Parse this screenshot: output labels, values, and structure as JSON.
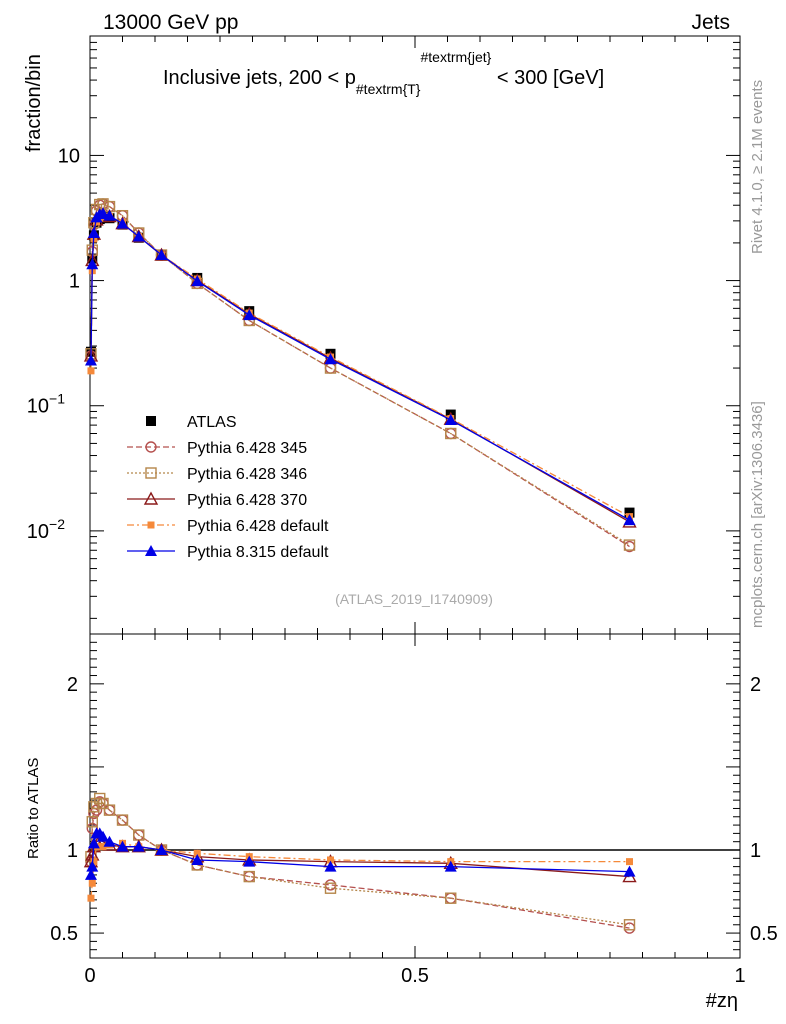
{
  "header": {
    "left": "13000 GeV pp",
    "right": "Jets",
    "side_top": "Rivet 4.1.0, ≥ 2.1M events",
    "side_bottom": "mcplots.cern.ch [arXiv:1306.3436]",
    "analysis_id": "(ATLAS_2019_I1740909)"
  },
  "chart_data": {
    "type": "line",
    "title": {
      "main": "Inclusive jets, 200 < p",
      "sub": "#textrm{T}",
      "sup": "#textrm{jet}",
      "tail": " < 300 [GeV]"
    },
    "xlabel": "#zη",
    "ylabel": "fraction/bin",
    "ratio_ylabel": "Ratio to ATLAS",
    "xlim": [
      0,
      1
    ],
    "ylim": [
      0.0015,
      90
    ],
    "ratio_ylim": [
      0.35,
      2.3
    ],
    "yscale": "log",
    "x_ticks": [
      {
        "v": 0,
        "label": "0"
      },
      {
        "v": 0.5,
        "label": "0.5"
      },
      {
        "v": 1,
        "label": "1"
      }
    ],
    "y_ticks": [
      {
        "v": 10,
        "label": "10",
        "exp": ""
      },
      {
        "v": 1,
        "label": "1",
        "exp": ""
      },
      {
        "v": 0.1,
        "label": "10",
        "exp": "−1"
      },
      {
        "v": 0.01,
        "label": "10",
        "exp": "−2"
      }
    ],
    "ratio_ticks": [
      {
        "v": 2,
        "label": "2"
      },
      {
        "v": 1,
        "label": "1"
      },
      {
        "v": 0.5,
        "label": "0.5"
      }
    ],
    "legend": {
      "position": "middle-left"
    },
    "x": [
      0.0015,
      0.0035,
      0.006,
      0.01,
      0.015,
      0.02,
      0.03,
      0.05,
      0.075,
      0.11,
      0.165,
      0.245,
      0.37,
      0.555,
      0.83
    ],
    "series": [
      {
        "name": "ATLAS",
        "color": "#000000",
        "marker": "square-filled",
        "dash": "none",
        "values": [
          0.27,
          1.5,
          2.3,
          2.9,
          3.1,
          3.2,
          3.15,
          2.8,
          2.2,
          1.6,
          1.05,
          0.57,
          0.26,
          0.085,
          0.014
        ],
        "ratio": [
          1,
          1,
          1,
          1,
          1,
          1,
          1,
          1,
          1,
          1,
          1,
          1,
          1,
          1,
          1
        ]
      },
      {
        "name": "Pythia 6.428 345",
        "color": "#b5504e",
        "marker": "circle-open",
        "dash": "6,3",
        "values": [
          0.25,
          1.7,
          2.8,
          3.6,
          4.0,
          4.1,
          3.9,
          3.3,
          2.4,
          1.6,
          0.95,
          0.48,
          0.2,
          0.06,
          0.0075
        ],
        "ratio": [
          0.93,
          1.13,
          1.22,
          1.24,
          1.29,
          1.28,
          1.24,
          1.18,
          1.09,
          1.0,
          0.91,
          0.84,
          0.79,
          0.71,
          0.53
        ]
      },
      {
        "name": "Pythia 6.428 346",
        "color": "#b5864a",
        "marker": "square-open",
        "dash": "2,2",
        "values": [
          0.26,
          1.75,
          2.9,
          3.7,
          4.05,
          4.1,
          3.9,
          3.3,
          2.4,
          1.6,
          0.95,
          0.48,
          0.2,
          0.06,
          0.0077
        ],
        "ratio": [
          0.96,
          1.17,
          1.26,
          1.28,
          1.31,
          1.28,
          1.24,
          1.18,
          1.09,
          1.0,
          0.91,
          0.84,
          0.77,
          0.71,
          0.55
        ]
      },
      {
        "name": "Pythia 6.428 370",
        "color": "#8b1a1a",
        "marker": "triangle-open",
        "dash": "none",
        "values": [
          0.25,
          1.45,
          2.35,
          3.05,
          3.3,
          3.35,
          3.25,
          2.85,
          2.25,
          1.6,
          1.0,
          0.54,
          0.24,
          0.078,
          0.0118
        ],
        "ratio": [
          0.93,
          0.97,
          1.02,
          1.05,
          1.06,
          1.05,
          1.03,
          1.02,
          1.02,
          1.0,
          0.96,
          0.94,
          0.93,
          0.92,
          0.84
        ]
      },
      {
        "name": "Pythia 6.428 default",
        "color": "#f5893a",
        "marker": "square-small-filled",
        "dash": "7,3,2,3",
        "values": [
          0.19,
          1.2,
          2.15,
          2.95,
          3.15,
          3.25,
          3.25,
          2.9,
          2.25,
          1.6,
          1.03,
          0.55,
          0.245,
          0.079,
          0.013
        ],
        "ratio": [
          0.71,
          0.8,
          0.93,
          1.02,
          1.02,
          1.02,
          1.03,
          1.04,
          1.02,
          1.0,
          0.98,
          0.96,
          0.94,
          0.93,
          0.93
        ]
      },
      {
        "name": "Pythia 8.315 default",
        "color": "#0000e6",
        "marker": "triangle-filled",
        "dash": "none",
        "values": [
          0.23,
          1.35,
          2.4,
          3.2,
          3.4,
          3.45,
          3.3,
          2.85,
          2.25,
          1.6,
          0.99,
          0.53,
          0.235,
          0.077,
          0.0122
        ],
        "ratio": [
          0.85,
          0.9,
          1.04,
          1.1,
          1.1,
          1.08,
          1.05,
          1.02,
          1.02,
          1.0,
          0.94,
          0.93,
          0.9,
          0.9,
          0.87
        ]
      }
    ]
  }
}
